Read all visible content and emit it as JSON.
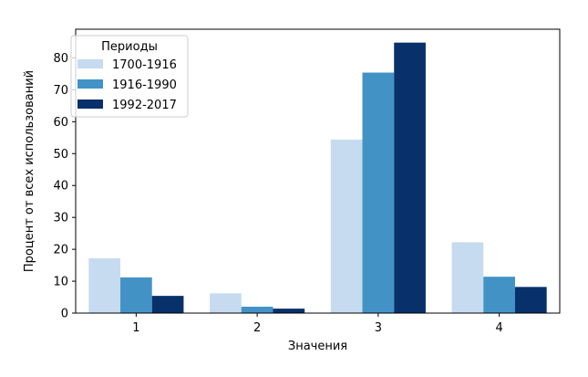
{
  "chart_data": {
    "type": "bar",
    "categories": [
      "1",
      "2",
      "3",
      "4"
    ],
    "series": [
      {
        "name": "1700-1916",
        "values": [
          17.2,
          6.2,
          54.4,
          22.2
        ],
        "color": "#c6dbef"
      },
      {
        "name": "1916-1990",
        "values": [
          11.2,
          2.0,
          75.4,
          11.4
        ],
        "color": "#4292c6"
      },
      {
        "name": "1992-2017",
        "values": [
          5.4,
          1.4,
          84.8,
          8.2
        ],
        "color": "#08306b"
      }
    ],
    "title": "",
    "xlabel": "Значения",
    "ylabel": "Процент от всех использований",
    "ylim": [
      0,
      89
    ],
    "yticks": [
      0,
      10,
      20,
      30,
      40,
      50,
      60,
      70,
      80
    ],
    "legend": {
      "title": "Периоды",
      "position": "top-left"
    },
    "grid": false
  }
}
